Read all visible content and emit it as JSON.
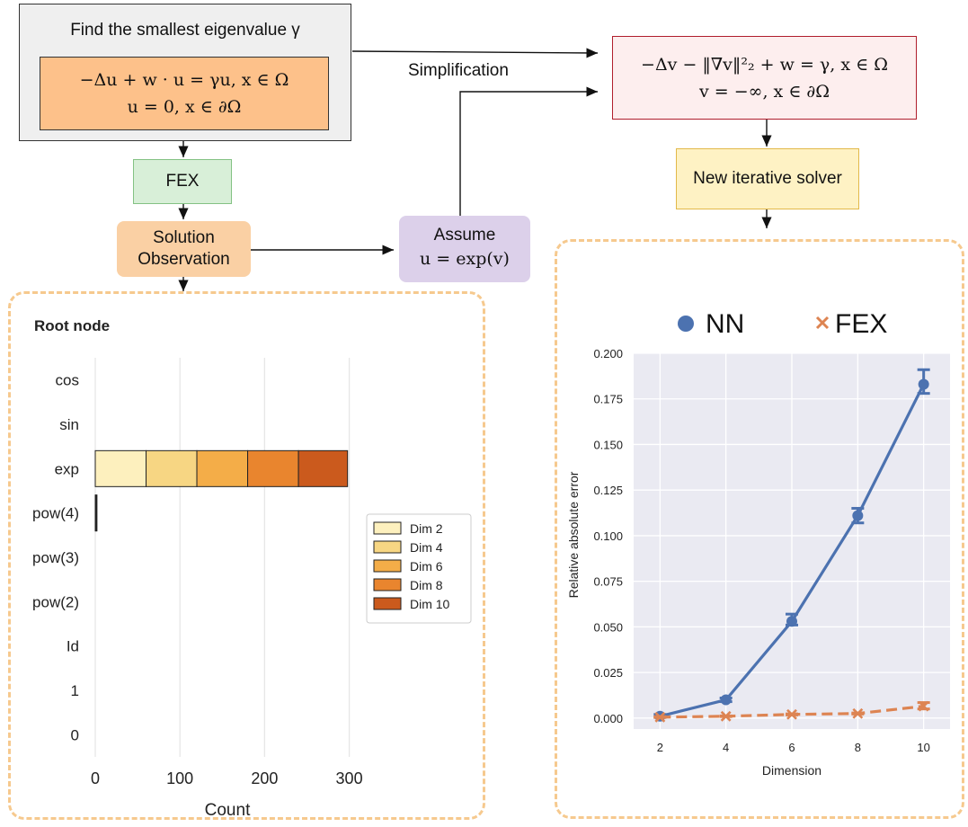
{
  "flow": {
    "eigen_title": "Find the smallest eigenvalue γ",
    "pde_line1": "−Δu + w · u = γu, x ∈ Ω",
    "pde_line2": "u = 0, x ∈ ∂Ω",
    "fex": "FEX",
    "solution_obs_line1": "Solution",
    "solution_obs_line2": "Observation",
    "assume_line1": "Assume",
    "assume_line2": "u = exp(v)",
    "simplification": "Simplification",
    "new_pde_line1": "−Δv − ‖∇v‖²₂ + w = γ, x ∈ Ω",
    "new_pde_line2": "v = −∞, x ∈ ∂Ω",
    "iterative_solver": "New iterative solver"
  },
  "colors": {
    "gray_box": "#efefef",
    "orange_fill": "#fdc18a",
    "green_fill": "#d8efd8",
    "green_border": "#84c284",
    "solution_fill": "#fad0a4",
    "purple_fill": "#dcd0ea",
    "pink_fill": "#fdeeee",
    "pink_border": "#b01e2c",
    "yellow_fill": "#fef2c4",
    "yellow_border": "#e2b94a",
    "panel_border": "#f6c98e",
    "plot_bg": "#eaeaf2",
    "nn": "#4c72b0",
    "fex_line": "#dd8452"
  },
  "chart_data": [
    {
      "type": "bar",
      "orientation": "horizontal",
      "stacked": true,
      "title": "Root node",
      "xlabel": "Count",
      "ylabel": "",
      "xlim": [
        0,
        310
      ],
      "xticks": [
        0,
        100,
        200,
        300
      ],
      "grid": true,
      "legend_position": "right",
      "categories": [
        "cos",
        "sin",
        "exp",
        "pow(4)",
        "pow(3)",
        "pow(2)",
        "Id",
        "1",
        "0"
      ],
      "series": [
        {
          "name": "Dim 2",
          "color": "#fdf0be",
          "values": [
            0,
            0,
            60,
            1,
            0,
            0,
            0,
            0,
            0
          ]
        },
        {
          "name": "Dim 4",
          "color": "#f7d683",
          "values": [
            0,
            0,
            60,
            0,
            0,
            0,
            0,
            0,
            0
          ]
        },
        {
          "name": "Dim 6",
          "color": "#f4ad48",
          "values": [
            0,
            0,
            60,
            0,
            0,
            0,
            0,
            0,
            0
          ]
        },
        {
          "name": "Dim 8",
          "color": "#e9852e",
          "values": [
            0,
            0,
            60,
            0,
            0,
            0,
            0,
            0,
            0
          ]
        },
        {
          "name": "Dim 10",
          "color": "#cb5a1d",
          "values": [
            0,
            0,
            58,
            1,
            0,
            0,
            0,
            0,
            0
          ]
        }
      ]
    },
    {
      "type": "line",
      "xlabel": "Dimension",
      "ylabel": "Relative absolute error",
      "x": [
        2,
        4,
        6,
        8,
        10
      ],
      "xticks": [
        "2",
        "4",
        "6",
        "8",
        "10"
      ],
      "ylim": [
        -0.006,
        0.2
      ],
      "yticks": [
        "0.000",
        "0.025",
        "0.050",
        "0.075",
        "0.100",
        "0.125",
        "0.150",
        "0.175",
        "0.200"
      ],
      "grid": true,
      "legend_position": "top",
      "series": [
        {
          "name": "NN",
          "marker": "circle",
          "line": "solid",
          "color": "#4c72b0",
          "values": [
            0.001,
            0.01,
            0.053,
            0.111,
            0.183
          ],
          "err_low": [
            0.0005,
            0.009,
            0.051,
            0.107,
            0.178
          ],
          "err_high": [
            0.002,
            0.011,
            0.057,
            0.115,
            0.191
          ]
        },
        {
          "name": "FEX",
          "marker": "x",
          "line": "dashed",
          "color": "#dd8452",
          "values": [
            0.0005,
            0.001,
            0.002,
            0.0025,
            0.0065
          ],
          "err_low": [
            0.0003,
            0.0008,
            0.0017,
            0.0022,
            0.005
          ],
          "err_high": [
            0.0008,
            0.0012,
            0.0023,
            0.0028,
            0.0085
          ]
        }
      ]
    }
  ]
}
